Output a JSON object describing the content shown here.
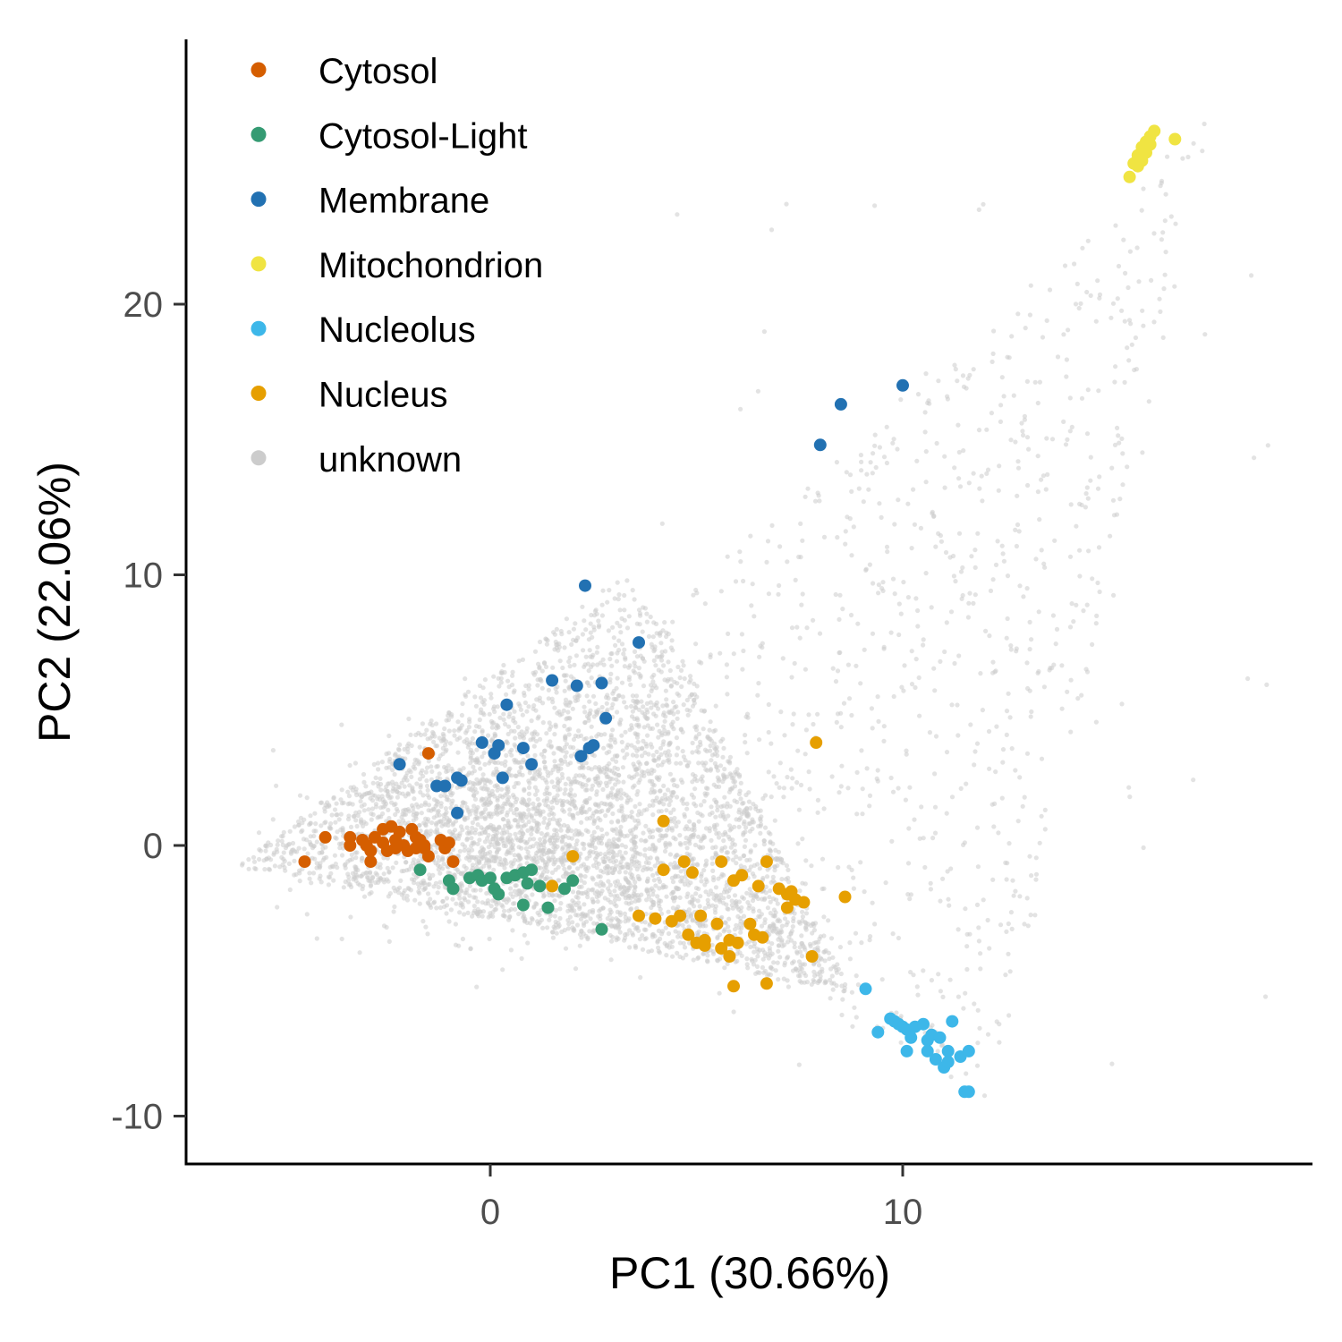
{
  "chart_data": {
    "type": "scatter",
    "xlabel": "PC1 (30.66%)",
    "ylabel": "PC2 (22.06%)",
    "xlim": [
      -7.4,
      20.0
    ],
    "ylim": [
      -11.8,
      29.8
    ],
    "x_ticks": [
      0,
      10
    ],
    "y_ticks": [
      -10,
      0,
      10,
      20
    ],
    "x_tick_labels": [
      "0",
      "10"
    ],
    "y_tick_labels": [
      "-10",
      "0",
      "10",
      "20"
    ],
    "grid": false,
    "legend_position": "top-left",
    "series": [
      {
        "name": "Cytosol",
        "color": "#D55E00",
        "points": [
          [
            -4.5,
            -0.6
          ],
          [
            -4.0,
            0.3
          ],
          [
            -3.4,
            0.3
          ],
          [
            -3.4,
            0.0
          ],
          [
            -3.1,
            0.2
          ],
          [
            -3.0,
            0.0
          ],
          [
            -2.9,
            -0.6
          ],
          [
            -2.9,
            -0.2
          ],
          [
            -2.8,
            0.3
          ],
          [
            -2.6,
            0.6
          ],
          [
            -2.6,
            0.1
          ],
          [
            -2.5,
            -0.2
          ],
          [
            -2.4,
            0.7
          ],
          [
            -2.3,
            0.2
          ],
          [
            -2.3,
            -0.1
          ],
          [
            -2.2,
            0.5
          ],
          [
            -2.1,
            0.0
          ],
          [
            -2.0,
            -0.2
          ],
          [
            -1.9,
            0.6
          ],
          [
            -1.8,
            0.3
          ],
          [
            -1.8,
            -0.1
          ],
          [
            -1.7,
            0.2
          ],
          [
            -1.6,
            -0.1
          ],
          [
            -1.6,
            0.0
          ],
          [
            -1.5,
            -0.4
          ],
          [
            -1.5,
            3.4
          ],
          [
            -1.2,
            0.2
          ],
          [
            -1.1,
            -0.1
          ],
          [
            -1.0,
            0.1
          ],
          [
            -0.9,
            -0.6
          ]
        ]
      },
      {
        "name": "Cytosol-Light",
        "color": "#359B73",
        "points": [
          [
            -1.7,
            -0.9
          ],
          [
            -1.0,
            -1.3
          ],
          [
            -0.9,
            -1.6
          ],
          [
            -0.5,
            -1.2
          ],
          [
            -0.3,
            -1.1
          ],
          [
            -0.2,
            -1.3
          ],
          [
            0.0,
            -1.2
          ],
          [
            0.1,
            -1.6
          ],
          [
            0.2,
            -1.8
          ],
          [
            0.4,
            -1.2
          ],
          [
            0.6,
            -1.1
          ],
          [
            0.8,
            -1.0
          ],
          [
            0.9,
            -1.4
          ],
          [
            1.0,
            -0.9
          ],
          [
            1.2,
            -1.5
          ],
          [
            1.4,
            -2.3
          ],
          [
            1.8,
            -1.6
          ],
          [
            2.0,
            -1.3
          ],
          [
            2.7,
            -3.1
          ],
          [
            0.8,
            -2.2
          ]
        ]
      },
      {
        "name": "Membrane",
        "color": "#2271B2",
        "points": [
          [
            -2.2,
            3.0
          ],
          [
            -1.3,
            2.2
          ],
          [
            -1.1,
            2.2
          ],
          [
            -0.8,
            2.5
          ],
          [
            -0.7,
            2.4
          ],
          [
            -0.8,
            1.2
          ],
          [
            -0.2,
            3.8
          ],
          [
            0.1,
            3.4
          ],
          [
            0.2,
            3.7
          ],
          [
            0.3,
            2.5
          ],
          [
            0.4,
            5.2
          ],
          [
            0.8,
            3.6
          ],
          [
            1.0,
            3.0
          ],
          [
            1.5,
            6.1
          ],
          [
            2.1,
            5.9
          ],
          [
            2.2,
            3.3
          ],
          [
            2.4,
            3.6
          ],
          [
            2.5,
            3.7
          ],
          [
            2.7,
            6.0
          ],
          [
            2.8,
            4.7
          ],
          [
            2.3,
            9.6
          ],
          [
            3.6,
            7.5
          ],
          [
            8.0,
            14.8
          ],
          [
            8.5,
            16.3
          ],
          [
            10.0,
            17.0
          ]
        ]
      },
      {
        "name": "Mitochondrion",
        "color": "#F0E442",
        "points": [
          [
            15.5,
            24.7
          ],
          [
            15.6,
            25.2
          ],
          [
            15.7,
            25.5
          ],
          [
            15.8,
            25.8
          ],
          [
            15.9,
            26.0
          ],
          [
            16.0,
            26.2
          ],
          [
            15.9,
            25.6
          ],
          [
            16.1,
            26.4
          ],
          [
            15.8,
            25.3
          ],
          [
            16.0,
            25.9
          ],
          [
            16.6,
            26.1
          ],
          [
            15.7,
            25.1
          ]
        ]
      },
      {
        "name": "Nucleolus",
        "color": "#3DB7E9",
        "points": [
          [
            9.1,
            -5.3
          ],
          [
            9.4,
            -6.9
          ],
          [
            9.7,
            -6.4
          ],
          [
            9.8,
            -6.5
          ],
          [
            9.9,
            -6.6
          ],
          [
            10.0,
            -6.7
          ],
          [
            10.1,
            -6.8
          ],
          [
            10.1,
            -7.6
          ],
          [
            10.2,
            -7.1
          ],
          [
            10.3,
            -6.7
          ],
          [
            10.5,
            -6.6
          ],
          [
            10.6,
            -7.2
          ],
          [
            10.6,
            -7.6
          ],
          [
            10.7,
            -7.0
          ],
          [
            10.8,
            -7.9
          ],
          [
            10.9,
            -7.1
          ],
          [
            11.0,
            -8.2
          ],
          [
            11.1,
            -7.6
          ],
          [
            11.1,
            -8.0
          ],
          [
            11.2,
            -6.5
          ],
          [
            11.4,
            -7.8
          ],
          [
            11.5,
            -9.1
          ],
          [
            11.6,
            -7.6
          ],
          [
            11.6,
            -9.1
          ]
        ]
      },
      {
        "name": "Nucleus",
        "color": "#E69F00",
        "points": [
          [
            4.2,
            0.9
          ],
          [
            4.2,
            -0.9
          ],
          [
            4.4,
            -2.8
          ],
          [
            4.6,
            -2.6
          ],
          [
            4.7,
            -0.6
          ],
          [
            4.8,
            -3.3
          ],
          [
            4.9,
            -1.0
          ],
          [
            5.0,
            -3.6
          ],
          [
            5.1,
            -2.6
          ],
          [
            5.2,
            -3.5
          ],
          [
            5.2,
            -3.7
          ],
          [
            5.5,
            -2.9
          ],
          [
            5.6,
            -0.6
          ],
          [
            5.6,
            -3.8
          ],
          [
            5.8,
            -3.5
          ],
          [
            5.8,
            -4.1
          ],
          [
            5.9,
            -1.3
          ],
          [
            5.9,
            -5.2
          ],
          [
            6.0,
            -3.6
          ],
          [
            6.1,
            -1.1
          ],
          [
            6.3,
            -2.9
          ],
          [
            6.4,
            -3.3
          ],
          [
            6.5,
            -1.5
          ],
          [
            6.6,
            -3.4
          ],
          [
            6.7,
            -5.1
          ],
          [
            6.7,
            -0.6
          ],
          [
            7.0,
            -1.6
          ],
          [
            7.2,
            -1.8
          ],
          [
            7.2,
            -2.3
          ],
          [
            7.3,
            -1.7
          ],
          [
            7.4,
            -2.0
          ],
          [
            7.6,
            -2.1
          ],
          [
            7.8,
            -4.1
          ],
          [
            7.9,
            3.8
          ],
          [
            8.6,
            -1.9
          ],
          [
            3.6,
            -2.6
          ],
          [
            4.0,
            -2.7
          ],
          [
            2.0,
            -0.4
          ],
          [
            1.5,
            -1.5
          ]
        ]
      },
      {
        "name": "unknown",
        "color": "#CCCCCC",
        "points": []
      }
    ]
  },
  "legend": {
    "items": [
      {
        "label": "Cytosol",
        "color": "#D55E00"
      },
      {
        "label": "Cytosol-Light",
        "color": "#359B73"
      },
      {
        "label": "Membrane",
        "color": "#2271B2"
      },
      {
        "label": "Mitochondrion",
        "color": "#F0E442"
      },
      {
        "label": "Nucleolus",
        "color": "#3DB7E9"
      },
      {
        "label": "Nucleus",
        "color": "#E69F00"
      },
      {
        "label": "unknown",
        "color": "#CCCCCC"
      }
    ]
  }
}
